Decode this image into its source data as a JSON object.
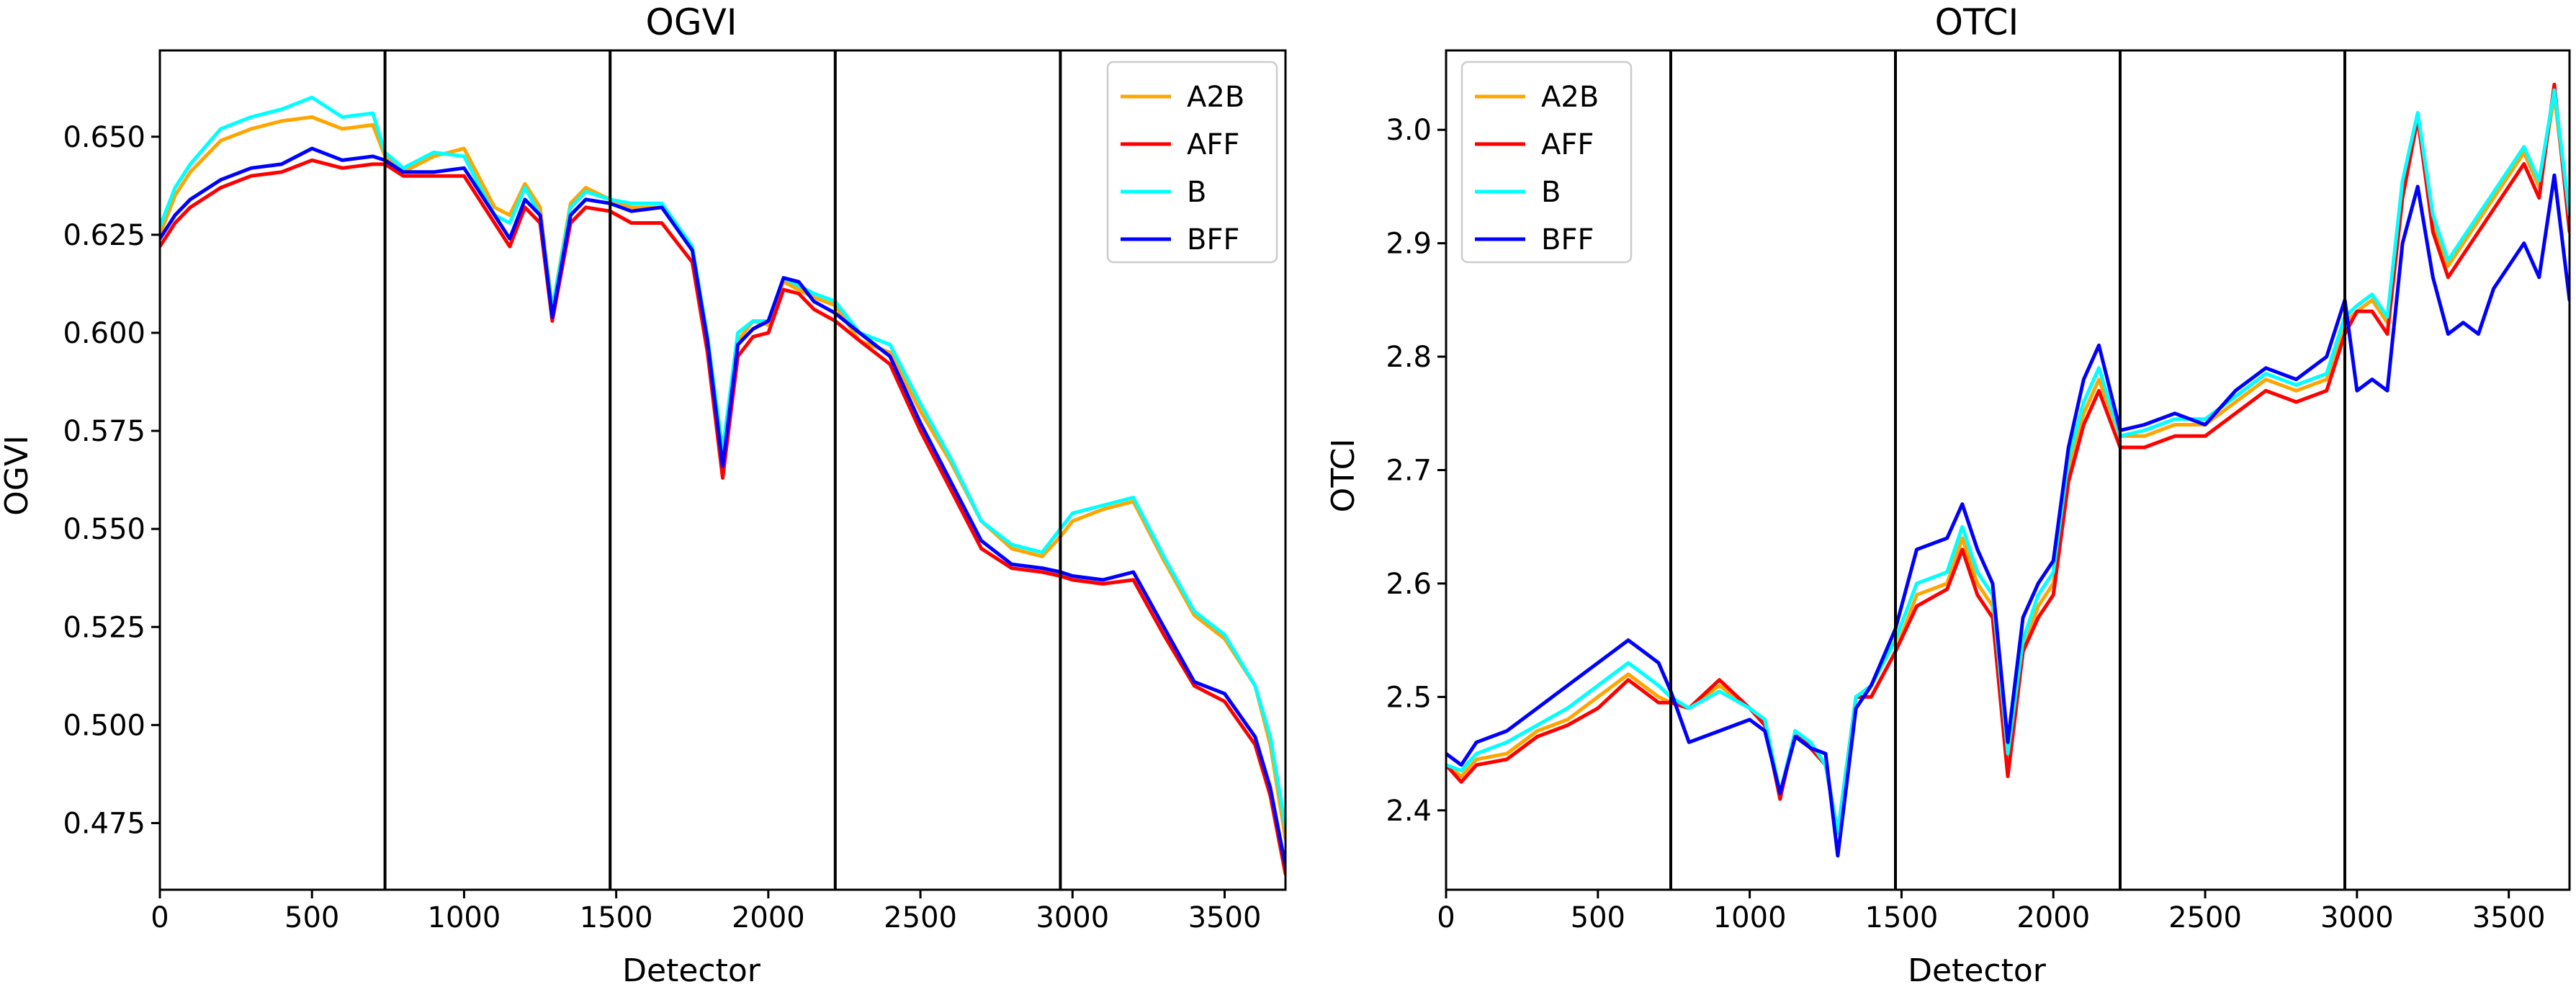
{
  "chart_data": [
    {
      "type": "line",
      "title": "OGVI",
      "xlabel": "Detector",
      "ylabel": "OGVI",
      "xlim": [
        0,
        3700
      ],
      "ylim": [
        0.458,
        0.672
      ],
      "xticks": [
        0,
        500,
        1000,
        1500,
        2000,
        2500,
        3000,
        3500
      ],
      "xtick_labels": [
        "0",
        "500",
        "1000",
        "1500",
        "2000",
        "2500",
        "3000",
        "3500"
      ],
      "yticks": [
        0.475,
        0.5,
        0.525,
        0.55,
        0.575,
        0.6,
        0.625,
        0.65
      ],
      "ytick_labels": [
        "0.475",
        "0.500",
        "0.525",
        "0.550",
        "0.575",
        "0.600",
        "0.625",
        "0.650"
      ],
      "vlines": [
        740,
        1480,
        2220,
        2960
      ],
      "legend_position": "upper-right",
      "series": [
        {
          "name": "A2B",
          "color": "#ffa500",
          "x": [
            0,
            50,
            100,
            200,
            300,
            400,
            500,
            600,
            700,
            740,
            800,
            900,
            1000,
            1100,
            1150,
            1200,
            1250,
            1290,
            1350,
            1400,
            1480,
            1550,
            1650,
            1750,
            1800,
            1850,
            1900,
            1950,
            2000,
            2050,
            2100,
            2150,
            2220,
            2300,
            2400,
            2500,
            2600,
            2700,
            2800,
            2900,
            2960,
            3000,
            3100,
            3200,
            3300,
            3400,
            3500,
            3600,
            3650,
            3700
          ],
          "y": [
            0.625,
            0.635,
            0.641,
            0.649,
            0.652,
            0.654,
            0.655,
            0.652,
            0.653,
            0.645,
            0.641,
            0.645,
            0.647,
            0.632,
            0.63,
            0.638,
            0.632,
            0.606,
            0.633,
            0.637,
            0.634,
            0.632,
            0.632,
            0.622,
            0.598,
            0.568,
            0.598,
            0.603,
            0.602,
            0.613,
            0.611,
            0.609,
            0.607,
            0.598,
            0.595,
            0.58,
            0.567,
            0.552,
            0.545,
            0.543,
            0.548,
            0.552,
            0.555,
            0.557,
            0.542,
            0.528,
            0.522,
            0.51,
            0.495,
            0.471
          ]
        },
        {
          "name": "AFF",
          "color": "#ff0000",
          "x": [
            0,
            50,
            100,
            200,
            300,
            400,
            500,
            600,
            700,
            740,
            800,
            900,
            1000,
            1100,
            1150,
            1200,
            1250,
            1290,
            1350,
            1400,
            1480,
            1550,
            1650,
            1750,
            1800,
            1850,
            1900,
            1950,
            2000,
            2050,
            2100,
            2150,
            2220,
            2300,
            2400,
            2500,
            2600,
            2700,
            2800,
            2900,
            2960,
            3000,
            3100,
            3200,
            3300,
            3400,
            3500,
            3600,
            3650,
            3700
          ],
          "y": [
            0.622,
            0.628,
            0.632,
            0.637,
            0.64,
            0.641,
            0.644,
            0.642,
            0.643,
            0.643,
            0.64,
            0.64,
            0.64,
            0.628,
            0.622,
            0.632,
            0.628,
            0.603,
            0.628,
            0.632,
            0.631,
            0.628,
            0.628,
            0.618,
            0.595,
            0.563,
            0.594,
            0.599,
            0.6,
            0.611,
            0.61,
            0.606,
            0.603,
            0.598,
            0.592,
            0.575,
            0.56,
            0.545,
            0.54,
            0.539,
            0.538,
            0.537,
            0.536,
            0.537,
            0.523,
            0.51,
            0.506,
            0.495,
            0.482,
            0.462
          ]
        },
        {
          "name": "B",
          "color": "#00ffff",
          "x": [
            0,
            50,
            100,
            200,
            300,
            400,
            500,
            600,
            700,
            740,
            800,
            900,
            1000,
            1100,
            1150,
            1200,
            1250,
            1290,
            1350,
            1400,
            1480,
            1550,
            1650,
            1750,
            1800,
            1850,
            1900,
            1950,
            2000,
            2050,
            2100,
            2150,
            2220,
            2300,
            2400,
            2500,
            2600,
            2700,
            2800,
            2900,
            2960,
            3000,
            3100,
            3200,
            3300,
            3400,
            3500,
            3600,
            3650,
            3700
          ],
          "y": [
            0.627,
            0.637,
            0.643,
            0.652,
            0.655,
            0.657,
            0.66,
            0.655,
            0.656,
            0.646,
            0.642,
            0.646,
            0.645,
            0.63,
            0.628,
            0.637,
            0.63,
            0.606,
            0.632,
            0.636,
            0.634,
            0.633,
            0.633,
            0.622,
            0.599,
            0.57,
            0.6,
            0.603,
            0.603,
            0.614,
            0.612,
            0.61,
            0.608,
            0.6,
            0.597,
            0.582,
            0.568,
            0.552,
            0.546,
            0.544,
            0.55,
            0.554,
            0.556,
            0.558,
            0.543,
            0.529,
            0.523,
            0.51,
            0.497,
            0.474
          ]
        },
        {
          "name": "BFF",
          "color": "#0000ff",
          "x": [
            0,
            50,
            100,
            200,
            300,
            400,
            500,
            600,
            700,
            740,
            800,
            900,
            1000,
            1100,
            1150,
            1200,
            1250,
            1290,
            1350,
            1400,
            1480,
            1550,
            1650,
            1750,
            1800,
            1850,
            1900,
            1950,
            2000,
            2050,
            2100,
            2150,
            2220,
            2300,
            2400,
            2500,
            2600,
            2700,
            2800,
            2900,
            2960,
            3000,
            3100,
            3200,
            3300,
            3400,
            3500,
            3600,
            3650,
            3700
          ],
          "y": [
            0.624,
            0.63,
            0.634,
            0.639,
            0.642,
            0.643,
            0.647,
            0.644,
            0.645,
            0.644,
            0.641,
            0.641,
            0.642,
            0.63,
            0.624,
            0.634,
            0.63,
            0.604,
            0.63,
            0.634,
            0.633,
            0.631,
            0.632,
            0.621,
            0.598,
            0.566,
            0.597,
            0.601,
            0.603,
            0.614,
            0.613,
            0.608,
            0.605,
            0.6,
            0.594,
            0.577,
            0.562,
            0.547,
            0.541,
            0.54,
            0.539,
            0.538,
            0.537,
            0.539,
            0.525,
            0.511,
            0.508,
            0.497,
            0.484,
            0.464
          ]
        }
      ]
    },
    {
      "type": "line",
      "title": "OTCI",
      "xlabel": "Detector",
      "ylabel": "OTCI",
      "xlim": [
        0,
        3700
      ],
      "ylim": [
        2.33,
        3.07
      ],
      "xticks": [
        0,
        500,
        1000,
        1500,
        2000,
        2500,
        3000,
        3500
      ],
      "xtick_labels": [
        "0",
        "500",
        "1000",
        "1500",
        "2000",
        "2500",
        "3000",
        "3500"
      ],
      "yticks": [
        2.4,
        2.5,
        2.6,
        2.7,
        2.8,
        2.9,
        3.0
      ],
      "ytick_labels": [
        "2.4",
        "2.5",
        "2.6",
        "2.7",
        "2.8",
        "2.9",
        "3.0"
      ],
      "vlines": [
        740,
        1480,
        2220,
        2960
      ],
      "legend_position": "upper-left",
      "series": [
        {
          "name": "A2B",
          "color": "#ffa500",
          "x": [
            0,
            50,
            100,
            200,
            300,
            400,
            500,
            600,
            700,
            740,
            800,
            900,
            1000,
            1050,
            1100,
            1150,
            1200,
            1250,
            1290,
            1350,
            1400,
            1480,
            1550,
            1650,
            1700,
            1750,
            1800,
            1850,
            1900,
            1950,
            2000,
            2050,
            2100,
            2150,
            2220,
            2300,
            2400,
            2500,
            2600,
            2700,
            2800,
            2900,
            2960,
            3000,
            3050,
            3100,
            3150,
            3200,
            3250,
            3300,
            3350,
            3400,
            3450,
            3500,
            3550,
            3600,
            3650,
            3700
          ],
          "y": [
            2.44,
            2.43,
            2.445,
            2.45,
            2.47,
            2.48,
            2.5,
            2.52,
            2.5,
            2.495,
            2.49,
            2.51,
            2.49,
            2.48,
            2.41,
            2.47,
            2.46,
            2.44,
            2.38,
            2.5,
            2.5,
            2.54,
            2.59,
            2.6,
            2.64,
            2.6,
            2.58,
            2.44,
            2.54,
            2.58,
            2.6,
            2.7,
            2.75,
            2.78,
            2.73,
            2.73,
            2.74,
            2.74,
            2.76,
            2.78,
            2.77,
            2.78,
            2.83,
            2.84,
            2.85,
            2.83,
            2.95,
            3.01,
            2.92,
            2.88,
            2.9,
            2.92,
            2.94,
            2.96,
            2.98,
            2.95,
            3.03,
            2.92
          ]
        },
        {
          "name": "AFF",
          "color": "#ff0000",
          "x": [
            0,
            50,
            100,
            200,
            300,
            400,
            500,
            600,
            700,
            740,
            800,
            900,
            1000,
            1050,
            1100,
            1150,
            1200,
            1250,
            1290,
            1350,
            1400,
            1480,
            1550,
            1650,
            1700,
            1750,
            1800,
            1850,
            1900,
            1950,
            2000,
            2050,
            2100,
            2150,
            2220,
            2300,
            2400,
            2500,
            2600,
            2700,
            2800,
            2900,
            2960,
            3000,
            3050,
            3100,
            3150,
            3200,
            3250,
            3300,
            3350,
            3400,
            3450,
            3500,
            3550,
            3600,
            3650,
            3700
          ],
          "y": [
            2.44,
            2.425,
            2.44,
            2.445,
            2.465,
            2.475,
            2.49,
            2.515,
            2.495,
            2.495,
            2.49,
            2.515,
            2.49,
            2.475,
            2.41,
            2.47,
            2.455,
            2.44,
            2.38,
            2.5,
            2.5,
            2.54,
            2.58,
            2.595,
            2.63,
            2.59,
            2.57,
            2.43,
            2.54,
            2.57,
            2.59,
            2.69,
            2.74,
            2.77,
            2.72,
            2.72,
            2.73,
            2.73,
            2.75,
            2.77,
            2.76,
            2.77,
            2.82,
            2.84,
            2.84,
            2.82,
            2.94,
            3.01,
            2.91,
            2.87,
            2.89,
            2.91,
            2.93,
            2.95,
            2.97,
            2.94,
            3.04,
            2.91
          ]
        },
        {
          "name": "B",
          "color": "#00ffff",
          "x": [
            0,
            50,
            100,
            200,
            300,
            400,
            500,
            600,
            700,
            740,
            800,
            900,
            1000,
            1050,
            1100,
            1150,
            1200,
            1250,
            1290,
            1350,
            1400,
            1480,
            1550,
            1650,
            1700,
            1750,
            1800,
            1850,
            1900,
            1950,
            2000,
            2050,
            2100,
            2150,
            2220,
            2300,
            2400,
            2500,
            2600,
            2700,
            2800,
            2900,
            2960,
            3000,
            3050,
            3100,
            3150,
            3200,
            3250,
            3300,
            3350,
            3400,
            3450,
            3500,
            3550,
            3600,
            3650,
            3700
          ],
          "y": [
            2.44,
            2.435,
            2.45,
            2.46,
            2.475,
            2.49,
            2.51,
            2.53,
            2.51,
            2.5,
            2.49,
            2.505,
            2.49,
            2.48,
            2.415,
            2.47,
            2.46,
            2.44,
            2.38,
            2.5,
            2.51,
            2.55,
            2.6,
            2.61,
            2.65,
            2.61,
            2.59,
            2.45,
            2.55,
            2.59,
            2.61,
            2.71,
            2.76,
            2.79,
            2.73,
            2.735,
            2.745,
            2.745,
            2.765,
            2.785,
            2.775,
            2.785,
            2.835,
            2.845,
            2.855,
            2.835,
            2.955,
            3.015,
            2.925,
            2.885,
            2.905,
            2.925,
            2.945,
            2.965,
            2.985,
            2.955,
            3.035,
            2.925
          ]
        },
        {
          "name": "BFF",
          "color": "#0000ff",
          "x": [
            0,
            50,
            100,
            200,
            300,
            400,
            500,
            600,
            700,
            740,
            800,
            900,
            1000,
            1050,
            1100,
            1150,
            1200,
            1250,
            1290,
            1350,
            1400,
            1480,
            1550,
            1650,
            1700,
            1750,
            1800,
            1850,
            1900,
            1950,
            2000,
            2050,
            2100,
            2150,
            2220,
            2300,
            2400,
            2500,
            2600,
            2700,
            2800,
            2900,
            2960,
            3000,
            3050,
            3100,
            3150,
            3200,
            3250,
            3300,
            3350,
            3400,
            3450,
            3500,
            3550,
            3600,
            3650,
            3700
          ],
          "y": [
            2.45,
            2.44,
            2.46,
            2.47,
            2.49,
            2.51,
            2.53,
            2.55,
            2.53,
            2.505,
            2.46,
            2.47,
            2.48,
            2.47,
            2.415,
            2.465,
            2.455,
            2.45,
            2.36,
            2.49,
            2.51,
            2.56,
            2.63,
            2.64,
            2.67,
            2.63,
            2.6,
            2.46,
            2.57,
            2.6,
            2.62,
            2.72,
            2.78,
            2.81,
            2.735,
            2.74,
            2.75,
            2.74,
            2.77,
            2.79,
            2.78,
            2.8,
            2.85,
            2.77,
            2.78,
            2.77,
            2.9,
            2.95,
            2.87,
            2.82,
            2.83,
            2.82,
            2.86,
            2.88,
            2.9,
            2.87,
            2.96,
            2.85
          ]
        }
      ]
    }
  ]
}
